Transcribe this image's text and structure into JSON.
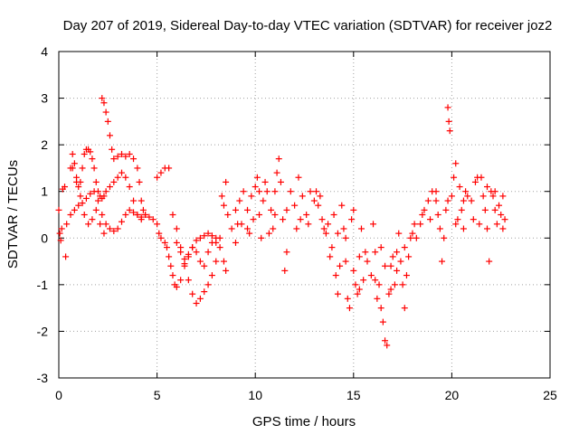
{
  "chart_data": {
    "type": "scatter",
    "title": "Day 207 of 2019, Sidereal Day-to-day VTEC variation (SDTVAR) for receiver joz2",
    "xlabel": "GPS time / hours",
    "ylabel": "SDTVAR / TECUs",
    "xlim": [
      0,
      25
    ],
    "ylim": [
      -3,
      4
    ],
    "x_ticks": [
      "0",
      "5",
      "10",
      "15",
      "20",
      "25"
    ],
    "x_tick_values": [
      0,
      5,
      10,
      15,
      20,
      25
    ],
    "y_ticks": [
      "4",
      "3",
      "2",
      "1",
      "0",
      "-1",
      "-2",
      "-3"
    ],
    "y_tick_values": [
      4,
      3,
      2,
      1,
      0,
      -1,
      -2,
      -3
    ],
    "grid": true,
    "marker": "+",
    "color": "#ff0000",
    "series": [
      {
        "name": "SDTVAR",
        "points": [
          [
            0.0,
            0.6
          ],
          [
            0.05,
            0.1
          ],
          [
            0.1,
            -0.05
          ],
          [
            0.15,
            0.2
          ],
          [
            0.2,
            1.05
          ],
          [
            0.3,
            1.1
          ],
          [
            0.35,
            -0.4
          ],
          [
            0.4,
            0.3
          ],
          [
            0.6,
            1.5
          ],
          [
            0.7,
            1.8
          ],
          [
            0.8,
            1.6
          ],
          [
            0.9,
            1.3
          ],
          [
            1.0,
            1.1
          ],
          [
            1.1,
            1.2
          ],
          [
            1.2,
            1.5
          ],
          [
            1.3,
            1.8
          ],
          [
            1.4,
            1.9
          ],
          [
            1.5,
            1.9
          ],
          [
            1.6,
            1.85
          ],
          [
            1.7,
            1.7
          ],
          [
            1.8,
            1.5
          ],
          [
            1.9,
            1.2
          ],
          [
            2.0,
            1.0
          ],
          [
            2.1,
            0.9
          ],
          [
            2.2,
            0.85
          ],
          [
            2.3,
            0.9
          ],
          [
            2.4,
            1.0
          ],
          [
            2.6,
            1.1
          ],
          [
            2.8,
            1.2
          ],
          [
            3.0,
            1.3
          ],
          [
            3.2,
            1.4
          ],
          [
            3.4,
            1.3
          ],
          [
            3.6,
            1.1
          ],
          [
            3.8,
            0.8
          ],
          [
            4.0,
            0.5
          ],
          [
            4.2,
            0.4
          ],
          [
            4.4,
            0.5
          ],
          [
            0.6,
            0.5
          ],
          [
            0.8,
            0.6
          ],
          [
            1.0,
            0.7
          ],
          [
            1.2,
            0.75
          ],
          [
            1.4,
            0.85
          ],
          [
            1.6,
            0.95
          ],
          [
            1.8,
            1.0
          ],
          [
            2.0,
            0.8
          ],
          [
            2.2,
            0.5
          ],
          [
            2.4,
            0.3
          ],
          [
            2.6,
            0.2
          ],
          [
            2.8,
            0.15
          ],
          [
            3.0,
            0.2
          ],
          [
            3.2,
            0.35
          ],
          [
            3.4,
            0.5
          ],
          [
            3.6,
            0.6
          ],
          [
            3.8,
            0.55
          ],
          [
            4.0,
            0.5
          ],
          [
            4.2,
            0.45
          ],
          [
            0.7,
            1.5
          ],
          [
            0.9,
            1.2
          ],
          [
            1.1,
            0.9
          ],
          [
            1.3,
            0.5
          ],
          [
            1.5,
            0.3
          ],
          [
            1.7,
            0.4
          ],
          [
            1.9,
            0.6
          ],
          [
            2.1,
            0.3
          ],
          [
            2.3,
            0.1
          ],
          [
            2.2,
            3.0
          ],
          [
            2.3,
            2.9
          ],
          [
            2.4,
            2.7
          ],
          [
            2.5,
            2.5
          ],
          [
            2.6,
            2.2
          ],
          [
            2.7,
            1.9
          ],
          [
            2.8,
            1.7
          ],
          [
            3.0,
            1.75
          ],
          [
            3.2,
            1.8
          ],
          [
            3.4,
            1.75
          ],
          [
            3.6,
            1.8
          ],
          [
            3.8,
            1.7
          ],
          [
            4.0,
            1.5
          ],
          [
            4.1,
            1.2
          ],
          [
            4.2,
            0.8
          ],
          [
            4.3,
            0.6
          ],
          [
            4.4,
            0.5
          ],
          [
            4.6,
            0.45
          ],
          [
            4.8,
            0.4
          ],
          [
            5.0,
            0.3
          ],
          [
            5.1,
            0.1
          ],
          [
            5.2,
            0.0
          ],
          [
            5.4,
            -0.1
          ],
          [
            5.5,
            -0.2
          ],
          [
            5.6,
            -0.4
          ],
          [
            5.7,
            -0.6
          ],
          [
            5.8,
            -0.8
          ],
          [
            5.9,
            -1.0
          ],
          [
            6.0,
            -1.05
          ],
          [
            6.2,
            -0.9
          ],
          [
            6.4,
            -0.6
          ],
          [
            6.6,
            -0.35
          ],
          [
            6.8,
            -0.2
          ],
          [
            7.0,
            -0.3
          ],
          [
            7.2,
            -0.5
          ],
          [
            7.4,
            -0.6
          ],
          [
            7.6,
            -0.3
          ],
          [
            7.8,
            -0.1
          ],
          [
            8.0,
            0.0
          ],
          [
            8.2,
            -0.2
          ],
          [
            8.4,
            -0.5
          ],
          [
            8.5,
            -0.7
          ],
          [
            5.0,
            1.3
          ],
          [
            5.2,
            1.4
          ],
          [
            5.4,
            1.5
          ],
          [
            5.6,
            1.5
          ],
          [
            5.8,
            0.5
          ],
          [
            6.0,
            0.2
          ],
          [
            6.2,
            -0.2
          ],
          [
            6.4,
            -0.45
          ],
          [
            6.6,
            -0.9
          ],
          [
            6.8,
            -1.2
          ],
          [
            7.0,
            -1.4
          ],
          [
            7.2,
            -1.3
          ],
          [
            7.4,
            -1.15
          ],
          [
            7.6,
            -1.0
          ],
          [
            7.8,
            -0.8
          ],
          [
            8.0,
            -0.5
          ],
          [
            6.0,
            -0.1
          ],
          [
            6.2,
            -0.3
          ],
          [
            6.4,
            -0.55
          ],
          [
            6.6,
            -0.4
          ],
          [
            6.8,
            -0.2
          ],
          [
            7.0,
            -0.05
          ],
          [
            7.2,
            0.0
          ],
          [
            7.4,
            0.05
          ],
          [
            7.6,
            0.1
          ],
          [
            7.8,
            0.05
          ],
          [
            8.0,
            -0.1
          ],
          [
            8.2,
            0.0
          ],
          [
            8.3,
            0.9
          ],
          [
            8.4,
            0.7
          ],
          [
            8.5,
            1.2
          ],
          [
            8.6,
            0.5
          ],
          [
            8.8,
            0.2
          ],
          [
            9.0,
            -0.1
          ],
          [
            9.1,
            0.3
          ],
          [
            9.2,
            0.8
          ],
          [
            9.4,
            1.0
          ],
          [
            9.6,
            0.6
          ],
          [
            9.7,
            0.1
          ],
          [
            9.8,
            0.9
          ],
          [
            10.0,
            1.1
          ],
          [
            10.1,
            1.3
          ],
          [
            10.2,
            0.5
          ],
          [
            10.3,
            0.0
          ],
          [
            10.4,
            0.8
          ],
          [
            10.5,
            1.2
          ],
          [
            10.6,
            1.0
          ],
          [
            10.8,
            0.6
          ],
          [
            10.9,
            0.2
          ],
          [
            11.0,
            1.0
          ],
          [
            11.1,
            1.4
          ],
          [
            11.2,
            1.7
          ],
          [
            11.3,
            1.2
          ],
          [
            11.4,
            0.4
          ],
          [
            11.5,
            -0.7
          ],
          [
            11.6,
            0.6
          ],
          [
            11.8,
            1.0
          ],
          [
            12.0,
            0.7
          ],
          [
            12.2,
            1.3
          ],
          [
            12.3,
            0.4
          ],
          [
            12.4,
            0.9
          ],
          [
            12.6,
            0.5
          ],
          [
            12.8,
            1.0
          ],
          [
            13.0,
            0.8
          ],
          [
            13.2,
            0.7
          ],
          [
            9.0,
            0.6
          ],
          [
            9.3,
            0.3
          ],
          [
            9.6,
            0.2
          ],
          [
            9.9,
            0.4
          ],
          [
            10.2,
            1.0
          ],
          [
            10.7,
            0.1
          ],
          [
            11.0,
            0.5
          ],
          [
            11.6,
            -0.3
          ],
          [
            12.1,
            0.2
          ],
          [
            12.7,
            0.3
          ],
          [
            13.1,
            1.0
          ],
          [
            13.3,
            0.9
          ],
          [
            13.5,
            0.2
          ],
          [
            13.7,
            0.3
          ],
          [
            13.9,
            -0.2
          ],
          [
            14.0,
            0.5
          ],
          [
            14.1,
            -0.8
          ],
          [
            14.2,
            -1.2
          ],
          [
            14.3,
            -0.6
          ],
          [
            14.4,
            0.7
          ],
          [
            14.5,
            0.2
          ],
          [
            14.6,
            -0.5
          ],
          [
            14.7,
            -1.3
          ],
          [
            14.8,
            -1.5
          ],
          [
            14.9,
            0.4
          ],
          [
            15.0,
            -0.7
          ],
          [
            15.1,
            -1.0
          ],
          [
            15.2,
            -1.2
          ],
          [
            15.3,
            -0.4
          ],
          [
            15.4,
            0.2
          ],
          [
            15.5,
            -0.9
          ],
          [
            15.6,
            -0.3
          ],
          [
            13.4,
            0.4
          ],
          [
            13.6,
            0.1
          ],
          [
            13.8,
            -0.4
          ],
          [
            14.2,
            0.1
          ],
          [
            14.6,
            0.0
          ],
          [
            15.0,
            0.6
          ],
          [
            15.3,
            -1.1
          ],
          [
            15.7,
            -0.5
          ],
          [
            15.9,
            -0.8
          ],
          [
            16.0,
            0.3
          ],
          [
            16.1,
            -0.9
          ],
          [
            16.2,
            -1.3
          ],
          [
            16.3,
            -1.0
          ],
          [
            16.4,
            -1.5
          ],
          [
            16.5,
            -1.8
          ],
          [
            16.6,
            -2.2
          ],
          [
            16.7,
            -2.3
          ],
          [
            16.8,
            -1.2
          ],
          [
            16.9,
            -0.6
          ],
          [
            17.0,
            -0.4
          ],
          [
            17.1,
            -1.0
          ],
          [
            17.2,
            -0.7
          ],
          [
            17.3,
            0.1
          ],
          [
            17.4,
            -0.5
          ],
          [
            17.5,
            -1.0
          ],
          [
            17.6,
            -1.5
          ],
          [
            17.7,
            -0.8
          ],
          [
            17.8,
            -0.4
          ],
          [
            17.9,
            0.0
          ],
          [
            18.0,
            0.1
          ],
          [
            18.2,
            0.0
          ],
          [
            18.4,
            0.3
          ],
          [
            18.6,
            0.6
          ],
          [
            18.8,
            0.8
          ],
          [
            19.0,
            1.0
          ],
          [
            19.2,
            0.8
          ],
          [
            19.3,
            0.5
          ],
          [
            19.4,
            0.2
          ],
          [
            19.5,
            -0.5
          ],
          [
            19.6,
            0.0
          ],
          [
            19.7,
            0.6
          ],
          [
            19.8,
            0.8
          ],
          [
            20.0,
            0.9
          ],
          [
            20.1,
            1.3
          ],
          [
            20.2,
            1.6
          ],
          [
            20.3,
            0.4
          ],
          [
            20.4,
            1.1
          ],
          [
            20.5,
            0.6
          ],
          [
            20.6,
            0.2
          ],
          [
            20.7,
            1.0
          ],
          [
            20.8,
            0.9
          ],
          [
            21.0,
            0.8
          ],
          [
            21.2,
            1.2
          ],
          [
            21.4,
            0.3
          ],
          [
            21.5,
            1.3
          ],
          [
            21.6,
            0.9
          ],
          [
            21.7,
            0.6
          ],
          [
            21.8,
            0.2
          ],
          [
            21.9,
            -0.5
          ],
          [
            22.0,
            1.0
          ],
          [
            22.1,
            0.9
          ],
          [
            22.2,
            0.6
          ],
          [
            22.3,
            0.3
          ],
          [
            22.4,
            0.7
          ],
          [
            22.5,
            0.5
          ],
          [
            22.6,
            0.9
          ],
          [
            22.7,
            0.4
          ],
          [
            16.1,
            -0.3
          ],
          [
            16.4,
            -0.2
          ],
          [
            16.6,
            -0.6
          ],
          [
            16.9,
            -1.1
          ],
          [
            17.2,
            -0.3
          ],
          [
            17.6,
            -0.2
          ],
          [
            18.1,
            0.3
          ],
          [
            18.5,
            0.5
          ],
          [
            18.9,
            0.4
          ],
          [
            19.2,
            1.0
          ],
          [
            19.8,
            2.8
          ],
          [
            19.85,
            2.5
          ],
          [
            19.9,
            2.3
          ],
          [
            20.2,
            0.3
          ],
          [
            20.6,
            0.8
          ],
          [
            21.1,
            0.4
          ],
          [
            21.3,
            1.3
          ],
          [
            21.8,
            1.1
          ],
          [
            22.2,
            1.0
          ],
          [
            22.6,
            0.2
          ]
        ]
      }
    ]
  }
}
